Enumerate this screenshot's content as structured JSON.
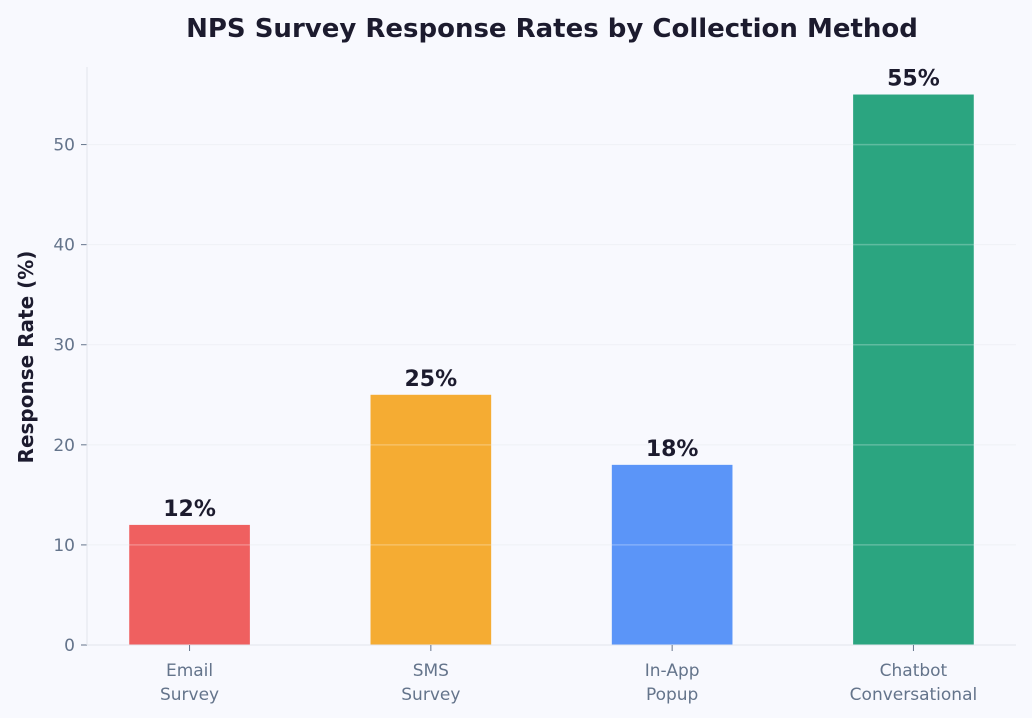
{
  "chart_data": {
    "type": "bar",
    "title": "NPS Survey Response Rates by Collection Method",
    "xlabel": "",
    "ylabel": "Response Rate (%)",
    "categories": [
      [
        "Email",
        "Survey"
      ],
      [
        "SMS",
        "Survey"
      ],
      [
        "In-App",
        "Popup"
      ],
      [
        "Chatbot",
        "Conversational"
      ]
    ],
    "values": [
      12,
      25,
      18,
      55
    ],
    "data_labels": [
      "12%",
      "25%",
      "18%",
      "55%"
    ],
    "colors": [
      "#ef6060",
      "#f5ac33",
      "#5b95f8",
      "#2ba580"
    ],
    "ylim": [
      0,
      57.75
    ],
    "yticks": [
      0,
      10,
      20,
      30,
      40,
      50
    ],
    "grid": "horizontal",
    "legend": "none"
  }
}
